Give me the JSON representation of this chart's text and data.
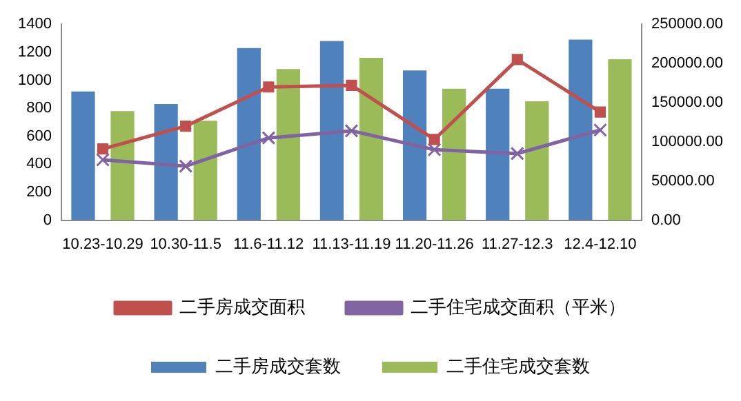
{
  "chart_data": {
    "type": "bar",
    "categories": [
      "10.23-10.29",
      "10.30-11.5",
      "11.6-11.12",
      "11.13-11.19",
      "11.20-11.26",
      "11.27-12.3",
      "12.4-12.10"
    ],
    "series": [
      {
        "name": "二手房成交套数",
        "color": "#4f81bd",
        "values": [
          920,
          830,
          1230,
          1280,
          1070,
          940,
          1290
        ]
      },
      {
        "name": "二手住宅成交套数",
        "color": "#9bbb59",
        "values": [
          780,
          710,
          1080,
          1160,
          940,
          850,
          1150
        ]
      },
      {
        "name": "二手房成交面积",
        "type": "line",
        "axis": "y2",
        "marker": "square",
        "color": "#c0504d",
        "values": [
          91000,
          120000,
          170000,
          172000,
          103000,
          205000,
          138000
        ]
      },
      {
        "name": "二手住宅成交面积（平米）",
        "type": "line",
        "axis": "y2",
        "marker": "cross",
        "color": "#8064a2",
        "values": [
          77000,
          69000,
          105000,
          114000,
          90000,
          85000,
          115000
        ]
      }
    ],
    "ylim": [
      0,
      1400
    ],
    "yticks": [
      0,
      200,
      400,
      600,
      800,
      1000,
      1200,
      1400
    ],
    "y2lim": [
      0,
      250000
    ],
    "y2ticks": [
      {
        "value": 0,
        "label": "0.00"
      },
      {
        "value": 50000,
        "label": "50000.00"
      },
      {
        "value": 100000,
        "label": "100000.00"
      },
      {
        "value": 150000,
        "label": "150000.00"
      },
      {
        "value": 200000,
        "label": "200000.00"
      },
      {
        "value": 250000,
        "label": "250000.00"
      }
    ],
    "grid": false,
    "legend": "bottom"
  }
}
